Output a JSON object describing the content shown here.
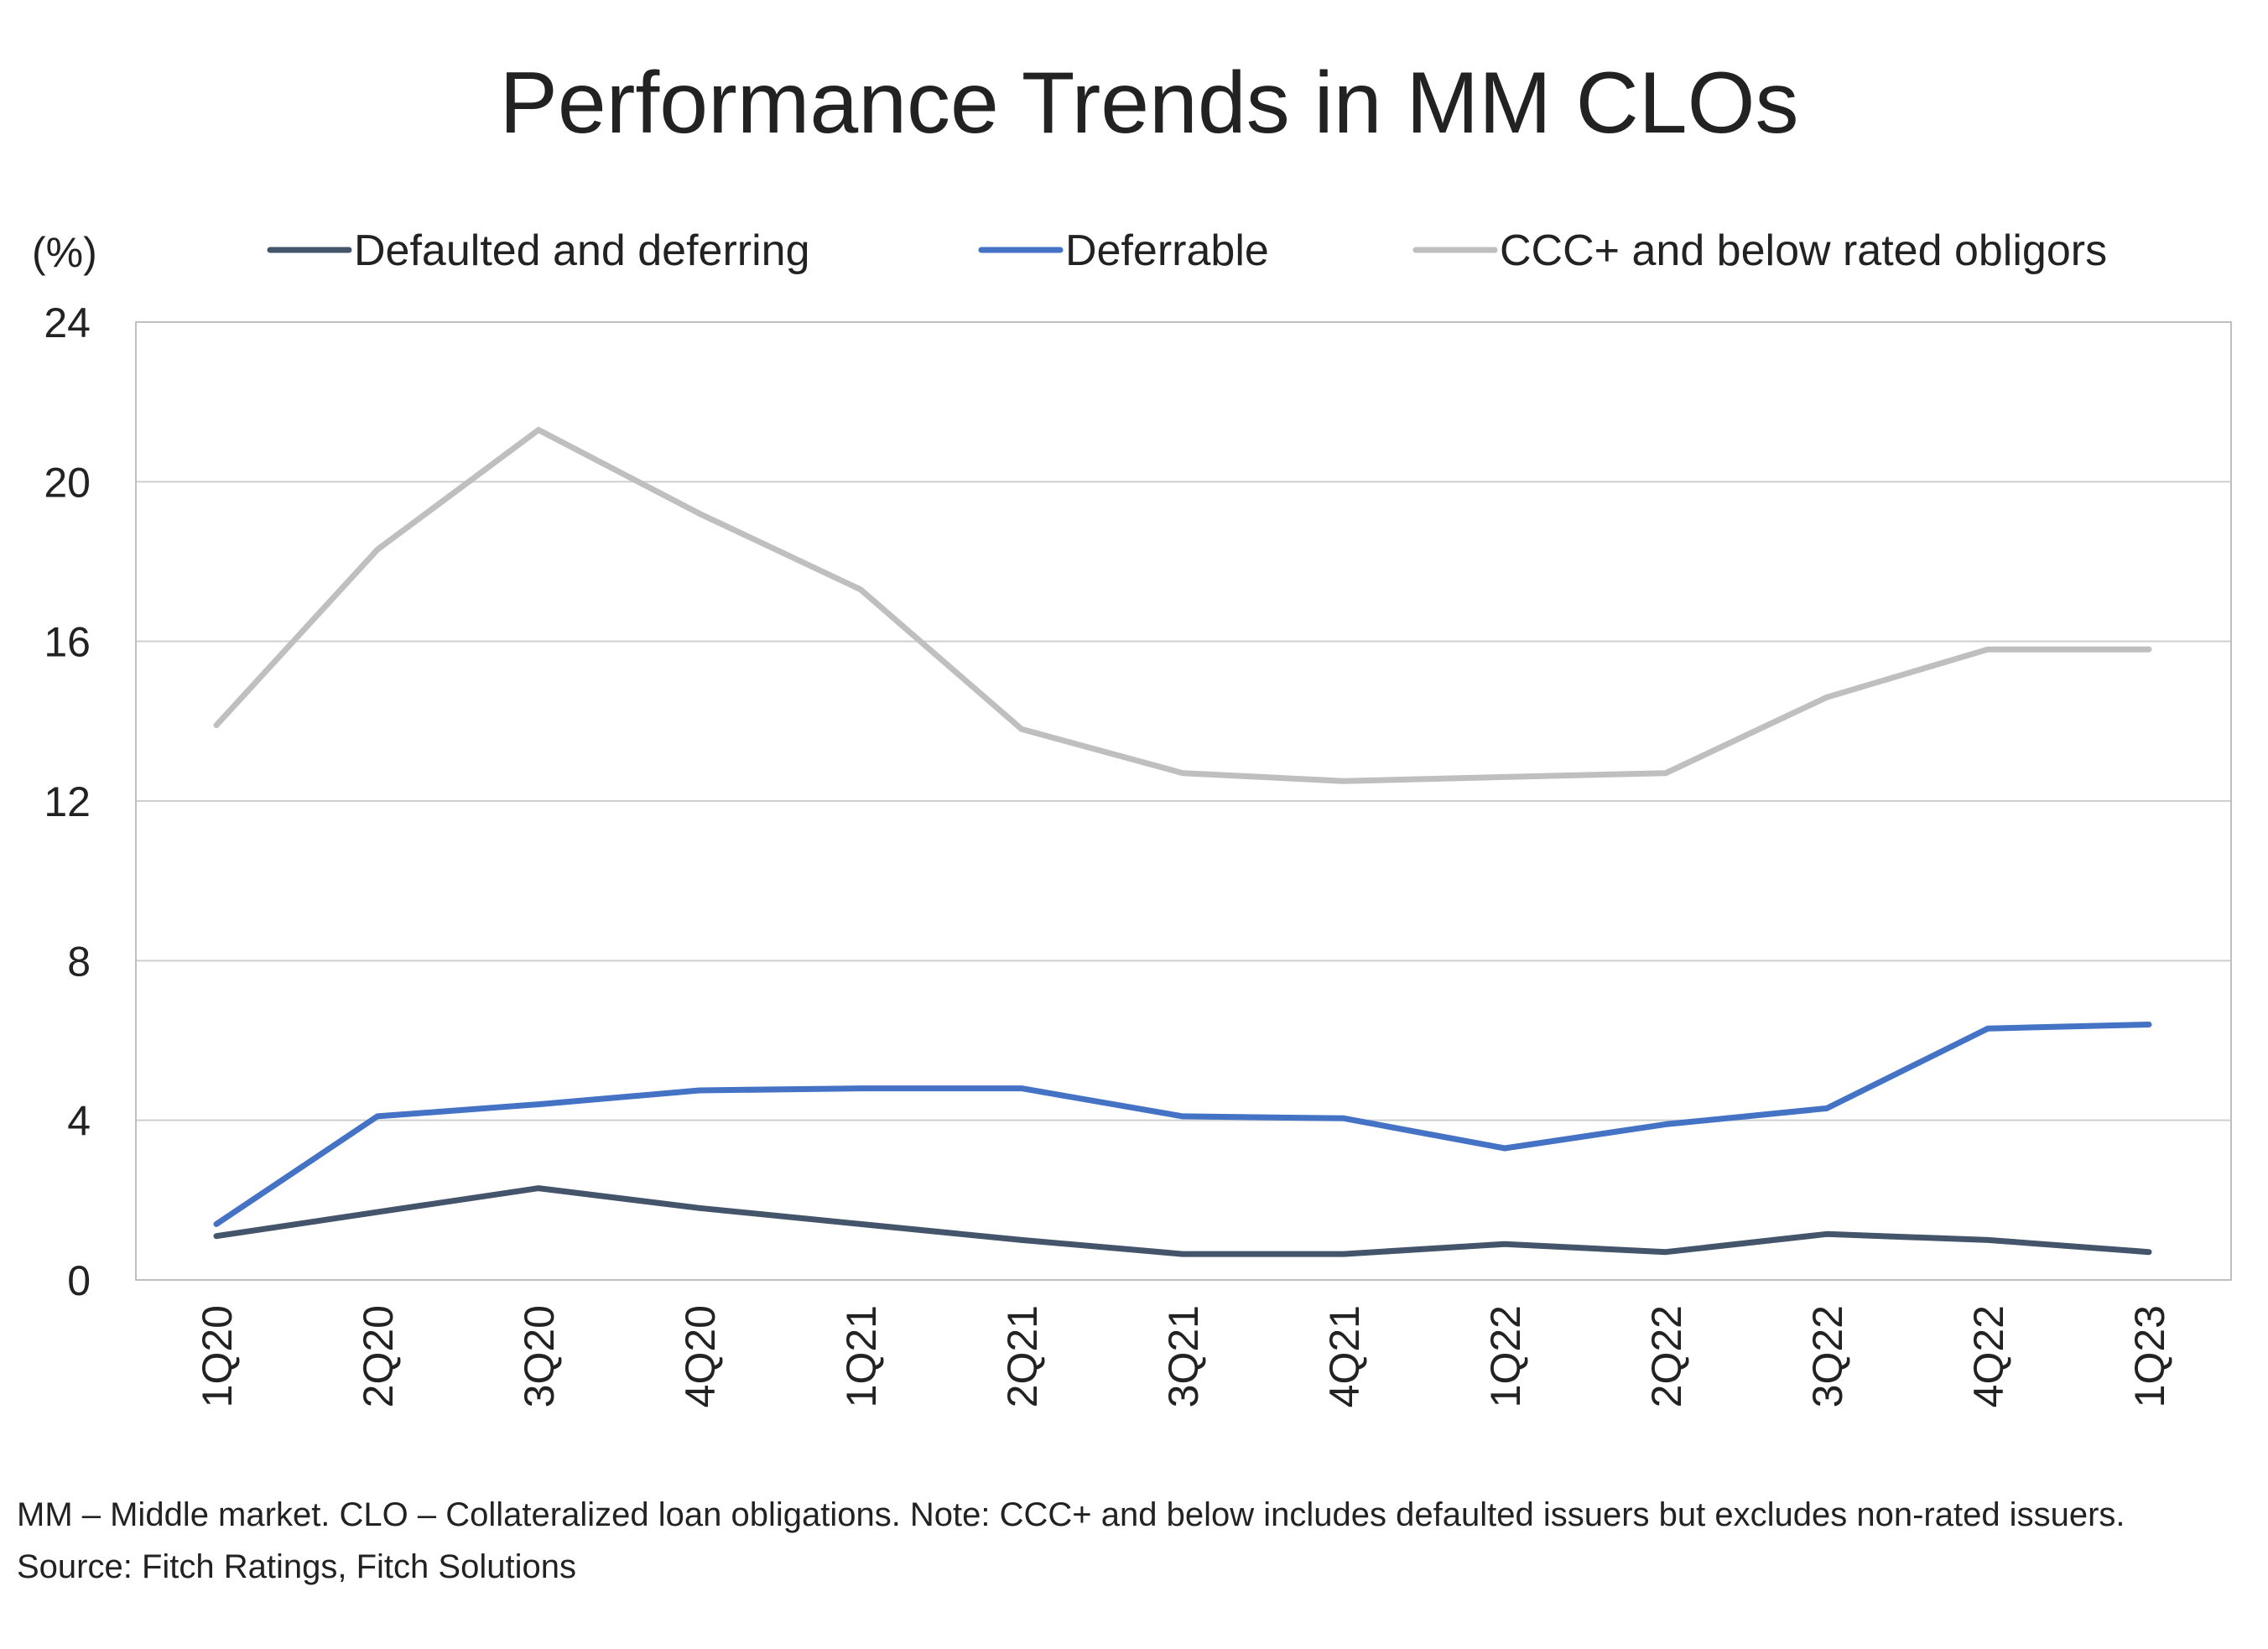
{
  "chart_data": {
    "type": "line",
    "title": "Performance Trends in MM CLOs",
    "ylabel": "(%)",
    "ylim": [
      0,
      24
    ],
    "yticks": [
      "0",
      "4",
      "8",
      "12",
      "16",
      "20",
      "24"
    ],
    "categories": [
      "1Q20",
      "2Q20",
      "3Q20",
      "4Q20",
      "1Q21",
      "2Q21",
      "3Q21",
      "4Q21",
      "1Q22",
      "2Q22",
      "3Q22",
      "4Q22",
      "1Q23"
    ],
    "grid": true,
    "legend_position": "top",
    "series": [
      {
        "name": "Defaulted and deferring",
        "color": "#44546a",
        "values": [
          1.1,
          1.7,
          2.3,
          1.8,
          1.4,
          1.0,
          0.65,
          0.65,
          0.9,
          0.7,
          1.15,
          1.0,
          0.7
        ]
      },
      {
        "name": "Deferrable",
        "color": "#4472c4",
        "values": [
          1.4,
          4.1,
          4.4,
          4.75,
          4.8,
          4.8,
          4.1,
          4.05,
          3.3,
          3.9,
          4.3,
          6.3,
          6.4
        ]
      },
      {
        "name": "CCC+ and below rated obligors",
        "color": "#bfbfbf",
        "values": [
          13.9,
          18.3,
          21.3,
          19.2,
          17.3,
          13.8,
          12.7,
          12.5,
          12.6,
          12.7,
          14.6,
          15.8,
          15.8
        ]
      }
    ]
  },
  "footer": {
    "note": "MM – Middle market. CLO – Collateralized loan obligations. Note: CCC+ and below includes defaulted issuers but excludes non-rated issuers.",
    "source": "Source: Fitch Ratings, Fitch Solutions"
  }
}
